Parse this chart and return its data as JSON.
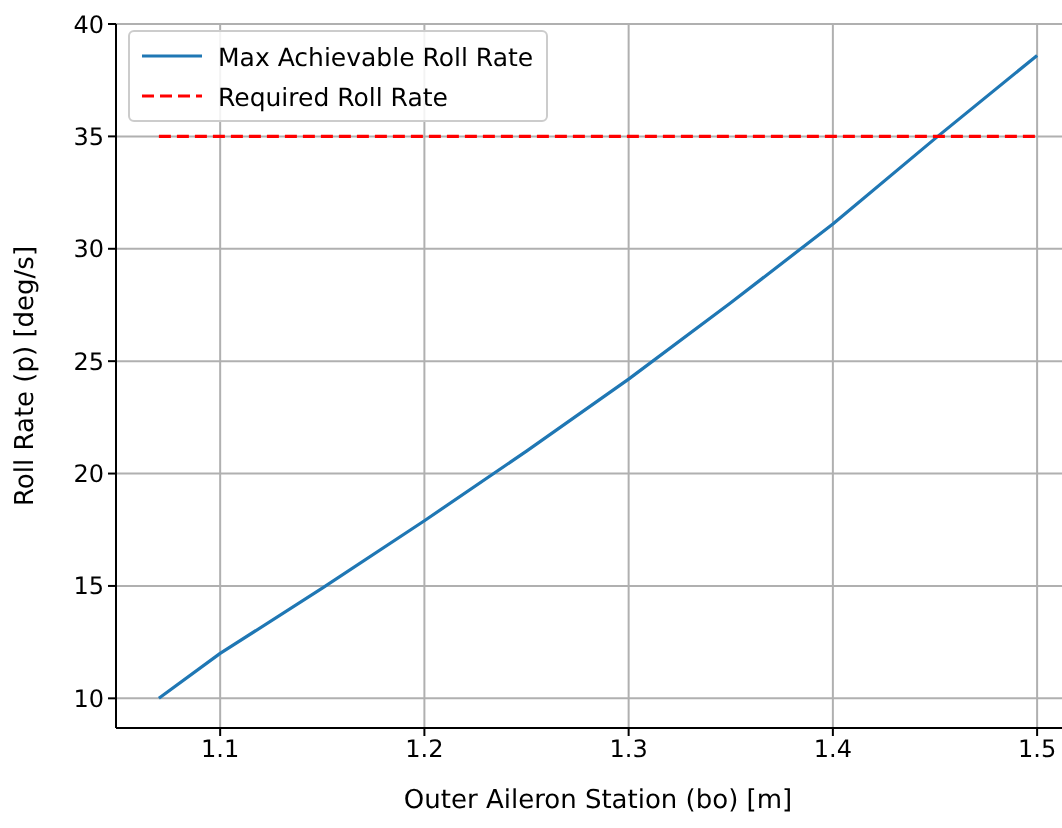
{
  "chart_data": {
    "type": "line",
    "xlabel": "Outer Aileron Station (bo) [m]",
    "ylabel": "Roll Rate (p) [deg/s]",
    "x": [
      1.07,
      1.1,
      1.15,
      1.2,
      1.25,
      1.3,
      1.35,
      1.4,
      1.45,
      1.5
    ],
    "series": [
      {
        "name": "Max Achievable Roll Rate",
        "color": "#1f77b4",
        "values": [
          10.0,
          12.0,
          14.9,
          17.9,
          21.0,
          24.2,
          27.6,
          31.1,
          34.9,
          38.6
        ]
      },
      {
        "name": "Required Roll Rate",
        "color": "#ff0000",
        "x": [
          1.07,
          1.5
        ],
        "values": [
          35,
          35
        ],
        "line_style": "dashed"
      }
    ],
    "xlim": [
      1.049,
      1.521
    ],
    "xticks": [
      1.1,
      1.2,
      1.3,
      1.4,
      1.5
    ],
    "ylim": [
      8.68,
      40
    ],
    "yticks": [
      10,
      15,
      20,
      25,
      30,
      35,
      40
    ],
    "grid": true,
    "legend": "top left",
    "marker": "none",
    "line_style": "solid"
  }
}
